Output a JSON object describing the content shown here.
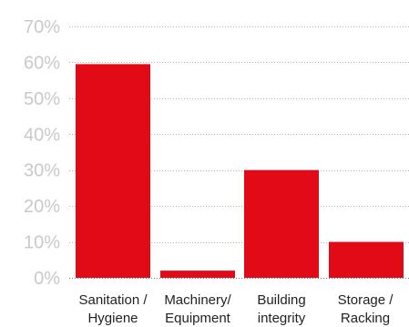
{
  "chart_data": {
    "type": "bar",
    "title": "",
    "xlabel": "",
    "ylabel": "",
    "categories": [
      [
        "Sanitation /",
        "Hygiene"
      ],
      [
        "Machinery/",
        "Equipment"
      ],
      [
        "Building",
        "integrity"
      ],
      [
        "Storage /",
        "Racking"
      ]
    ],
    "values": [
      59.5,
      2,
      30,
      10
    ],
    "unit": "%",
    "ylim": [
      0,
      70
    ],
    "yticks": [
      0,
      10,
      20,
      30,
      40,
      50,
      60,
      70
    ],
    "ytick_labels": [
      "0%",
      "10%",
      "20%",
      "30%",
      "40%",
      "50%",
      "60%",
      "70%"
    ],
    "grid": true,
    "legend": "none",
    "bar_color": "#e20a17",
    "grid_color": "#b5b5b5",
    "tick_color": "#c9c9c9",
    "label_color": "#222222"
  }
}
